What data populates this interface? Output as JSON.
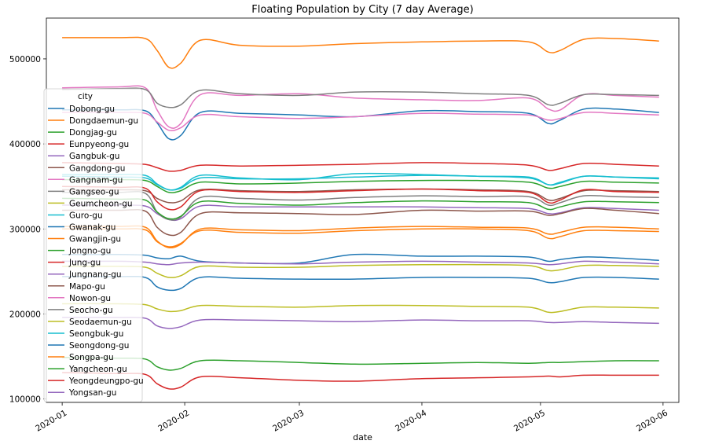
{
  "chart_data": {
    "type": "line",
    "title": "Floating Population by City (7 day Average)",
    "xlabel": "date",
    "ylabel": "",
    "legend_title": "city",
    "legend_position": "left",
    "grid": false,
    "xlim": [
      "2019-12-28",
      "2020-06-05"
    ],
    "ylim": [
      96000,
      548000
    ],
    "x_ticks": [
      "2020-01",
      "2020-02",
      "2020-03",
      "2020-04",
      "2020-05",
      "2020-06"
    ],
    "y_ticks": [
      100000,
      200000,
      300000,
      400000,
      500000
    ],
    "y_tick_labels": [
      "100000",
      "200000",
      "300000",
      "400000",
      "500000"
    ],
    "x_dates": [
      "2020-01-01",
      "2020-01-15",
      "2020-01-22",
      "2020-01-25",
      "2020-01-28",
      "2020-01-31",
      "2020-02-05",
      "2020-02-15",
      "2020-03-01",
      "2020-03-15",
      "2020-04-01",
      "2020-04-15",
      "2020-04-28",
      "2020-05-03",
      "2020-05-06",
      "2020-05-12",
      "2020-05-20",
      "2020-05-31"
    ],
    "series": [
      {
        "name": "Dobong-gu",
        "color": "#1f77b4",
        "values": [
          440000,
          440000,
          439000,
          425000,
          406000,
          410000,
          437000,
          436000,
          434000,
          432000,
          439000,
          438000,
          436000,
          424000,
          428000,
          441000,
          441000,
          437000
        ]
      },
      {
        "name": "Dongdaemun-gu",
        "color": "#ff7f0e",
        "values": [
          525000,
          525000,
          524000,
          510000,
          490000,
          495000,
          522000,
          516000,
          515000,
          518000,
          520000,
          521000,
          520000,
          508000,
          510000,
          523000,
          524000,
          521000
        ]
      },
      {
        "name": "Dongjag-gu",
        "color": "#2ca02c",
        "values": [
          358000,
          358000,
          357000,
          350000,
          343000,
          345000,
          355000,
          353000,
          354000,
          356000,
          357000,
          357000,
          355000,
          348000,
          350000,
          356000,
          355000,
          354000
        ]
      },
      {
        "name": "Eunpyeong-gu",
        "color": "#d62728",
        "values": [
          378000,
          377000,
          376000,
          372000,
          368000,
          369000,
          375000,
          374000,
          375000,
          376000,
          378000,
          377000,
          375000,
          369000,
          371000,
          377000,
          376000,
          374000
        ]
      },
      {
        "name": "Gangbuk-gu",
        "color": "#9467bd",
        "values": [
          328000,
          328000,
          327000,
          318000,
          311000,
          312000,
          327000,
          326000,
          326000,
          326000,
          326000,
          325000,
          324000,
          318000,
          319000,
          325000,
          324000,
          322000
        ]
      },
      {
        "name": "Gangdong-gu",
        "color": "#8c564b",
        "values": [
          322000,
          322000,
          321000,
          302000,
          293000,
          296000,
          318000,
          319000,
          318000,
          317000,
          322000,
          321000,
          321000,
          316000,
          318000,
          324000,
          322000,
          318000
        ]
      },
      {
        "name": "Gangnam-gu",
        "color": "#e377c2",
        "values": [
          466000,
          467000,
          466000,
          440000,
          420000,
          424000,
          458000,
          457000,
          459000,
          454000,
          452000,
          451000,
          454000,
          441000,
          440000,
          458000,
          457000,
          455000
        ]
      },
      {
        "name": "Gangseo-gu",
        "color": "#7f7f7f",
        "values": [
          464000,
          465000,
          464000,
          448000,
          443000,
          446000,
          463000,
          459000,
          457000,
          461000,
          461000,
          459000,
          457000,
          446000,
          448000,
          458000,
          458000,
          457000
        ]
      },
      {
        "name": "Geumcheon-gu",
        "color": "#bcbd22",
        "values": [
          256000,
          256000,
          255000,
          248000,
          243000,
          245000,
          256000,
          255000,
          255000,
          257000,
          258000,
          258000,
          257000,
          251000,
          252000,
          257000,
          257000,
          256000
        ]
      },
      {
        "name": "Guro-gu",
        "color": "#17becf",
        "values": [
          364000,
          364000,
          363000,
          353000,
          346000,
          349000,
          363000,
          360000,
          358000,
          365000,
          364000,
          362000,
          361000,
          352000,
          354000,
          362000,
          361000,
          360000
        ]
      },
      {
        "name": "Gwanak-gu",
        "color": "#1f77b4",
        "values": [
          270000,
          270000,
          269000,
          266000,
          265000,
          268000,
          262000,
          260000,
          260000,
          270000,
          268000,
          268000,
          267000,
          262000,
          264000,
          267000,
          266000,
          263000
        ]
      },
      {
        "name": "Gwangjin-gu",
        "color": "#ff7f0e",
        "values": [
          300000,
          300000,
          299000,
          285000,
          279000,
          283000,
          298000,
          296000,
          295000,
          298000,
          300000,
          300000,
          298000,
          289000,
          291000,
          298000,
          298000,
          297000
        ]
      },
      {
        "name": "Jongno-gu",
        "color": "#2ca02c",
        "values": [
          149000,
          148000,
          147000,
          138000,
          134000,
          136000,
          145000,
          145000,
          143000,
          141000,
          142000,
          143000,
          142000,
          143000,
          143000,
          144000,
          145000,
          145000
        ]
      },
      {
        "name": "Jung-gu",
        "color": "#d62728",
        "values": [
          131000,
          130000,
          129000,
          118000,
          112000,
          114000,
          126000,
          125000,
          122000,
          121000,
          124000,
          125000,
          126000,
          127000,
          126000,
          128000,
          128000,
          128000
        ]
      },
      {
        "name": "Jungnang-gu",
        "color": "#9467bd",
        "values": [
          262000,
          262000,
          261000,
          259000,
          258000,
          260000,
          261000,
          260000,
          259000,
          261000,
          262000,
          261000,
          260000,
          258000,
          259000,
          262000,
          261000,
          259000
        ]
      },
      {
        "name": "Mapo-gu",
        "color": "#8c564b",
        "values": [
          346000,
          346000,
          345000,
          336000,
          331000,
          333000,
          346000,
          345000,
          344000,
          346000,
          347000,
          346000,
          344000,
          334000,
          336000,
          345000,
          345000,
          344000
        ]
      },
      {
        "name": "Nowon-gu",
        "color": "#e377c2",
        "values": [
          437000,
          437000,
          436000,
          426000,
          416000,
          419000,
          434000,
          432000,
          430000,
          432000,
          436000,
          435000,
          434000,
          428000,
          430000,
          437000,
          436000,
          434000
        ]
      },
      {
        "name": "Seocho-gu",
        "color": "#7f7f7f",
        "values": [
          343000,
          343000,
          342000,
          320000,
          311000,
          314000,
          337000,
          336000,
          334000,
          337000,
          339000,
          338000,
          338000,
          328000,
          331000,
          339000,
          338000,
          337000
        ]
      },
      {
        "name": "Seodaemun-gu",
        "color": "#bcbd22",
        "values": [
          212000,
          212000,
          211000,
          206000,
          203000,
          204000,
          210000,
          209000,
          208000,
          210000,
          210000,
          209000,
          208000,
          202000,
          203000,
          208000,
          208000,
          207000
        ]
      },
      {
        "name": "Seongbuk-gu",
        "color": "#17becf",
        "values": [
          362000,
          361000,
          360000,
          352000,
          346000,
          348000,
          360000,
          359000,
          359000,
          361000,
          363000,
          362000,
          360000,
          352000,
          355000,
          362000,
          361000,
          359000
        ]
      },
      {
        "name": "Seongdong-gu",
        "color": "#1f77b4",
        "values": [
          244000,
          244000,
          243000,
          232000,
          228000,
          230000,
          243000,
          242000,
          241000,
          241000,
          243000,
          243000,
          242000,
          237000,
          238000,
          243000,
          243000,
          241000
        ]
      },
      {
        "name": "Songpa-gu",
        "color": "#ff7f0e",
        "values": [
          303000,
          303000,
          302000,
          286000,
          278000,
          282000,
          300000,
          299000,
          298000,
          301000,
          303000,
          302000,
          301000,
          294000,
          296000,
          302000,
          302000,
          300000
        ]
      },
      {
        "name": "Yangcheon-gu",
        "color": "#2ca02c",
        "values": [
          336000,
          335000,
          334000,
          320000,
          312000,
          315000,
          332000,
          330000,
          328000,
          331000,
          333000,
          332000,
          331000,
          323000,
          326000,
          332000,
          332000,
          331000
        ]
      },
      {
        "name": "Yeongdeungpo-gu",
        "color": "#d62728",
        "values": [
          350000,
          349000,
          348000,
          332000,
          323000,
          326000,
          345000,
          344000,
          343000,
          345000,
          347000,
          345000,
          343000,
          331000,
          334000,
          346000,
          344000,
          343000
        ]
      },
      {
        "name": "Yongsan-gu",
        "color": "#9467bd",
        "values": [
          196000,
          196000,
          195000,
          186000,
          183000,
          185000,
          193000,
          193000,
          192000,
          191000,
          193000,
          192000,
          192000,
          190000,
          190000,
          191000,
          190000,
          189000
        ]
      }
    ]
  }
}
